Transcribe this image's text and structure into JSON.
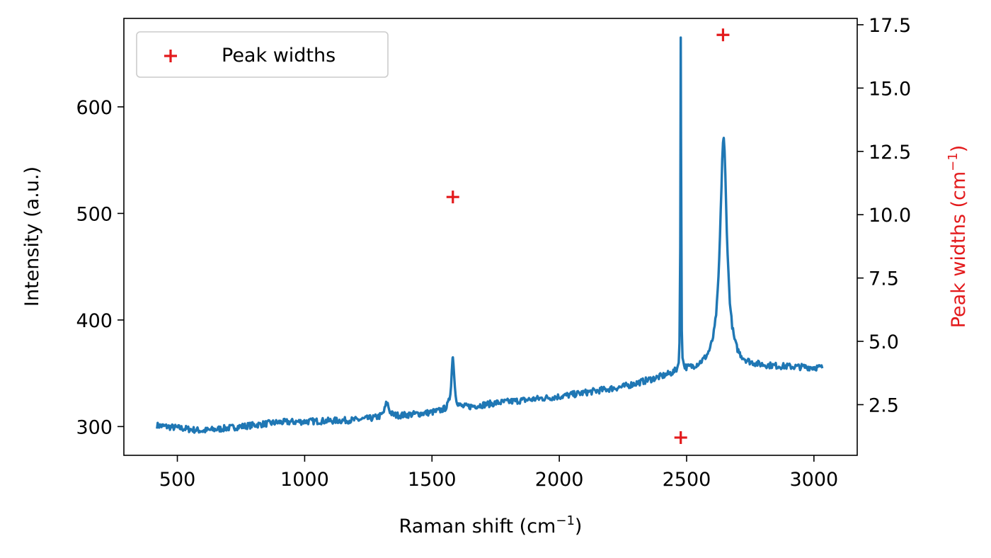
{
  "chart_data": {
    "type": "line",
    "colors": {
      "spectrum": "#1f77b4",
      "peak_widths": "#e31a1c",
      "axis": "#000000"
    },
    "x_axis": {
      "label": "Raman shift (cm",
      "label_sup": "−1",
      "label_end": ")",
      "range": [
        290,
        3170
      ],
      "ticks": [
        500,
        1000,
        1500,
        2000,
        2500,
        3000
      ]
    },
    "y_left": {
      "label": "Intensity (a.u.)",
      "range": [
        273,
        683
      ],
      "ticks": [
        300,
        400,
        500,
        600
      ]
    },
    "y_right": {
      "label": "Peak widths (cm",
      "label_sup": "−1",
      "label_end": ")",
      "range": [
        0.5,
        17.75
      ],
      "ticks": [
        2.5,
        5.0,
        7.5,
        10.0,
        12.5,
        15.0,
        17.5
      ],
      "tick_labels": [
        "2.5",
        "5.0",
        "7.5",
        "10.0",
        "12.5",
        "15.0",
        "17.5"
      ]
    },
    "legend": {
      "position": "top-left",
      "entries": [
        "Peak widths"
      ]
    },
    "grid": false,
    "series": [
      {
        "kind": "line",
        "axis": "left",
        "x_range": [
          420,
          3035
        ],
        "baseline": [
          [
            420,
            301
          ],
          [
            600,
            296
          ],
          [
            900,
            304
          ],
          [
            1200,
            306
          ],
          [
            1500,
            313
          ],
          [
            1750,
            322
          ],
          [
            2000,
            328
          ],
          [
            2250,
            337
          ],
          [
            2480,
            351
          ],
          [
            2600,
            356
          ],
          [
            2800,
            356
          ],
          [
            3035,
            355
          ]
        ],
        "peaks": [
          {
            "center": 1323,
            "height": 322,
            "fwhm": 20
          },
          {
            "center": 1582,
            "height": 365,
            "fwhm": 14
          },
          {
            "center": 2477,
            "height": 665,
            "fwhm": 3
          },
          {
            "center": 2645,
            "height": 570,
            "fwhm": 32
          }
        ],
        "noise": 3
      },
      {
        "name": "Peak widths",
        "kind": "scatter",
        "axis": "right",
        "marker": "+",
        "points": [
          {
            "x": 1582,
            "y": 10.7
          },
          {
            "x": 2477,
            "y": 1.2
          },
          {
            "x": 2643,
            "y": 17.1
          }
        ]
      }
    ]
  }
}
